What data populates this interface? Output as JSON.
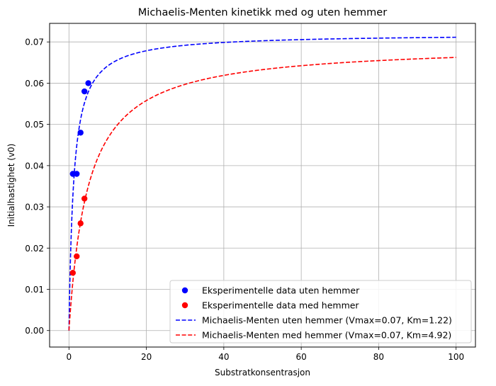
{
  "chart_data": {
    "type": "scatter",
    "title": "Michaelis-Menten kinetikk med og uten hemmer",
    "xlabel": "Substratkonsentrasjon",
    "ylabel": "Initialhastighet (v0)",
    "xlim": [
      -5,
      105
    ],
    "ylim": [
      -0.004,
      0.0745
    ],
    "xticks": [
      0,
      20,
      40,
      60,
      80,
      100
    ],
    "yticks": [
      0.0,
      0.01,
      0.02,
      0.03,
      0.04,
      0.05,
      0.06,
      0.07
    ],
    "xtick_labels": [
      "0",
      "20",
      "40",
      "60",
      "80",
      "100"
    ],
    "ytick_labels": [
      "0.00",
      "0.01",
      "0.02",
      "0.03",
      "0.04",
      "0.05",
      "0.06",
      "0.07"
    ],
    "grid": true,
    "legend_position": "bottom-right",
    "series": [
      {
        "name": "Eksperimentelle data uten hemmer",
        "kind": "scatter",
        "color": "#0000ff",
        "x": [
          1,
          2,
          3,
          4,
          5
        ],
        "y": [
          0.038,
          0.038,
          0.048,
          0.058,
          0.06
        ]
      },
      {
        "name": "Eksperimentelle data med hemmer",
        "kind": "scatter",
        "color": "#ff0000",
        "x": [
          1,
          2,
          3,
          4
        ],
        "y": [
          0.014,
          0.018,
          0.026,
          0.032
        ]
      },
      {
        "name": "Michaelis-Menten uten hemmer (Vmax=0.07, Km=1.22)",
        "kind": "line",
        "style": "dashed",
        "color": "#0000ff",
        "vmax": 0.072,
        "km": 1.22,
        "x_range": [
          0,
          100
        ]
      },
      {
        "name": "Michaelis-Menten med hemmer (Vmax=0.07, Km=4.92)",
        "kind": "line",
        "style": "dashed",
        "color": "#ff0000",
        "vmax": 0.0695,
        "km": 4.92,
        "x_range": [
          0,
          100
        ]
      }
    ]
  }
}
